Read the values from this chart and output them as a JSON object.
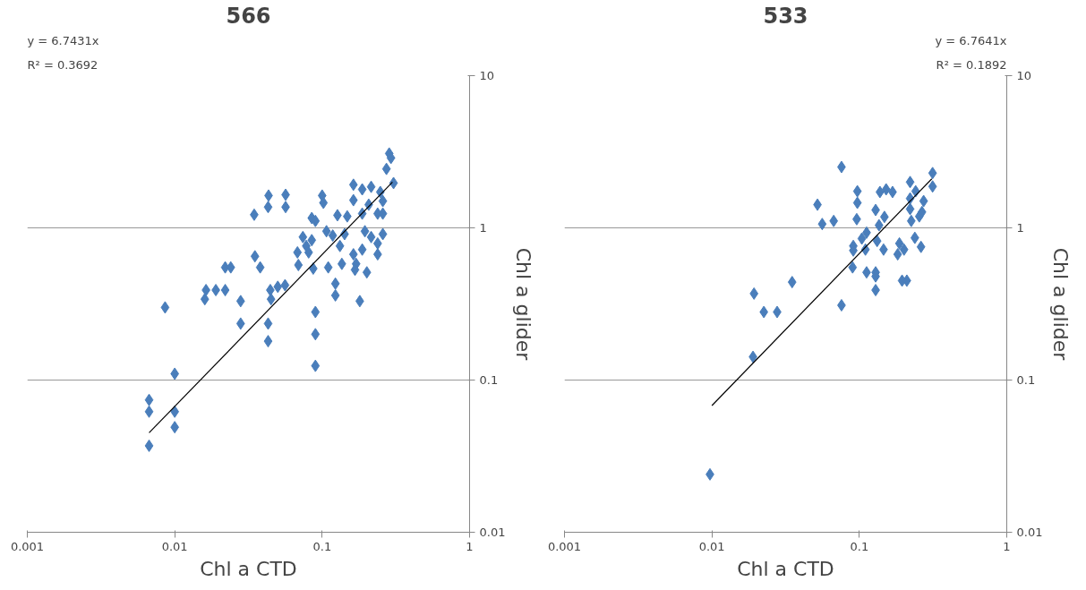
{
  "chart_data": [
    {
      "type": "scatter",
      "title": "566",
      "xlabel": "Chl a CTD",
      "ylabel": "Chl a glider",
      "annotations": [
        "y = 6.7431x",
        "R² = 0.3692"
      ],
      "log": "xy",
      "grid": "y",
      "xlim": [
        0.001,
        1
      ],
      "ylim": [
        0.01,
        10
      ],
      "xticks": [
        0.001,
        0.01,
        0.1,
        1
      ],
      "yticks": [
        0.01,
        0.1,
        1,
        10
      ],
      "series": [
        {
          "marker": "diamond",
          "color": "#4a7ebb",
          "x": [
            0.0433,
            0.043,
            0.0346,
            0.035,
            0.038,
            0.022,
            0.024,
            0.0163,
            0.019,
            0.022,
            0.016,
            0.028,
            0.028,
            0.043,
            0.043,
            0.0086,
            0.01,
            0.0067,
            0.0067,
            0.01,
            0.01,
            0.0067,
            0.0565,
            0.0565,
            0.1,
            0.102,
            0.085,
            0.09,
            0.127,
            0.163,
            0.187,
            0.215,
            0.248,
            0.163,
            0.207,
            0.258,
            0.285,
            0.293,
            0.273,
            0.305,
            0.238,
            0.148,
            0.187,
            0.258,
            0.107,
            0.118,
            0.074,
            0.085,
            0.142,
            0.195,
            0.215,
            0.258,
            0.238,
            0.078,
            0.068,
            0.081,
            0.132,
            0.163,
            0.187,
            0.238,
            0.069,
            0.087,
            0.11,
            0.136,
            0.17,
            0.201,
            0.167,
            0.123,
            0.123,
            0.18,
            0.09,
            0.09,
            0.09,
            0.0445,
            0.05,
            0.056,
            0.045
          ],
          "values": [
            1.63,
            1.37,
            1.22,
            0.65,
            0.55,
            0.55,
            0.55,
            0.39,
            0.39,
            0.39,
            0.34,
            0.33,
            0.235,
            0.235,
            0.18,
            0.3,
            0.11,
            0.074,
            0.062,
            0.062,
            0.049,
            0.037,
            1.65,
            1.37,
            1.63,
            1.46,
            1.16,
            1.11,
            1.21,
            1.92,
            1.79,
            1.86,
            1.72,
            1.52,
            1.42,
            1.5,
            3.08,
            2.88,
            2.44,
            1.97,
            1.24,
            1.19,
            1.24,
            1.24,
            0.95,
            0.89,
            0.87,
            0.83,
            0.91,
            0.95,
            0.87,
            0.91,
            0.79,
            0.76,
            0.69,
            0.69,
            0.76,
            0.67,
            0.72,
            0.67,
            0.57,
            0.54,
            0.55,
            0.58,
            0.58,
            0.51,
            0.53,
            0.43,
            0.36,
            0.33,
            0.28,
            0.2,
            0.124,
            0.39,
            0.41,
            0.42,
            0.34
          ]
        },
        {
          "type": "line",
          "color": "#000000",
          "x": [
            0.0067,
            0.3
          ],
          "values": [
            0.045,
            2.0
          ]
        }
      ]
    },
    {
      "type": "scatter",
      "title": "533",
      "xlabel": "Chl a CTD",
      "ylabel": "Chl a glider",
      "annotations": [
        "y = 6.7641x",
        "R² = 0.1892"
      ],
      "log": "xy",
      "grid": "y",
      "xlim": [
        0.001,
        1
      ],
      "ylim": [
        0.01,
        10
      ],
      "xticks": [
        0.001,
        0.01,
        0.1,
        1
      ],
      "yticks": [
        0.01,
        0.1,
        1,
        10
      ],
      "series": [
        {
          "marker": "diamond",
          "color": "#4a7ebb",
          "x": [
            0.0757,
            0.314,
            0.314,
            0.221,
            0.241,
            0.221,
            0.273,
            0.221,
            0.266,
            0.225,
            0.255,
            0.152,
            0.168,
            0.138,
            0.097,
            0.097,
            0.052,
            0.129,
            0.148,
            0.096,
            0.067,
            0.056,
            0.136,
            0.112,
            0.104,
            0.132,
            0.091,
            0.11,
            0.146,
            0.091,
            0.187,
            0.201,
            0.182,
            0.238,
            0.262,
            0.09,
            0.112,
            0.129,
            0.129,
            0.195,
            0.21,
            0.129,
            0.0757,
            0.035,
            0.0193,
            0.0225,
            0.0277,
            0.019,
            0.0097
          ],
          "values": [
            2.51,
            2.29,
            1.87,
            2.0,
            1.74,
            1.56,
            1.5,
            1.33,
            1.27,
            1.11,
            1.19,
            1.79,
            1.72,
            1.72,
            1.74,
            1.46,
            1.42,
            1.31,
            1.18,
            1.14,
            1.11,
            1.06,
            1.04,
            0.93,
            0.85,
            0.82,
            0.76,
            0.72,
            0.72,
            0.71,
            0.79,
            0.72,
            0.67,
            0.86,
            0.75,
            0.55,
            0.51,
            0.51,
            0.48,
            0.45,
            0.45,
            0.39,
            0.31,
            0.44,
            0.37,
            0.28,
            0.28,
            0.142,
            0.024
          ]
        },
        {
          "type": "line",
          "color": "#000000",
          "x": [
            0.01,
            0.31
          ],
          "values": [
            0.068,
            2.1
          ]
        }
      ]
    }
  ]
}
